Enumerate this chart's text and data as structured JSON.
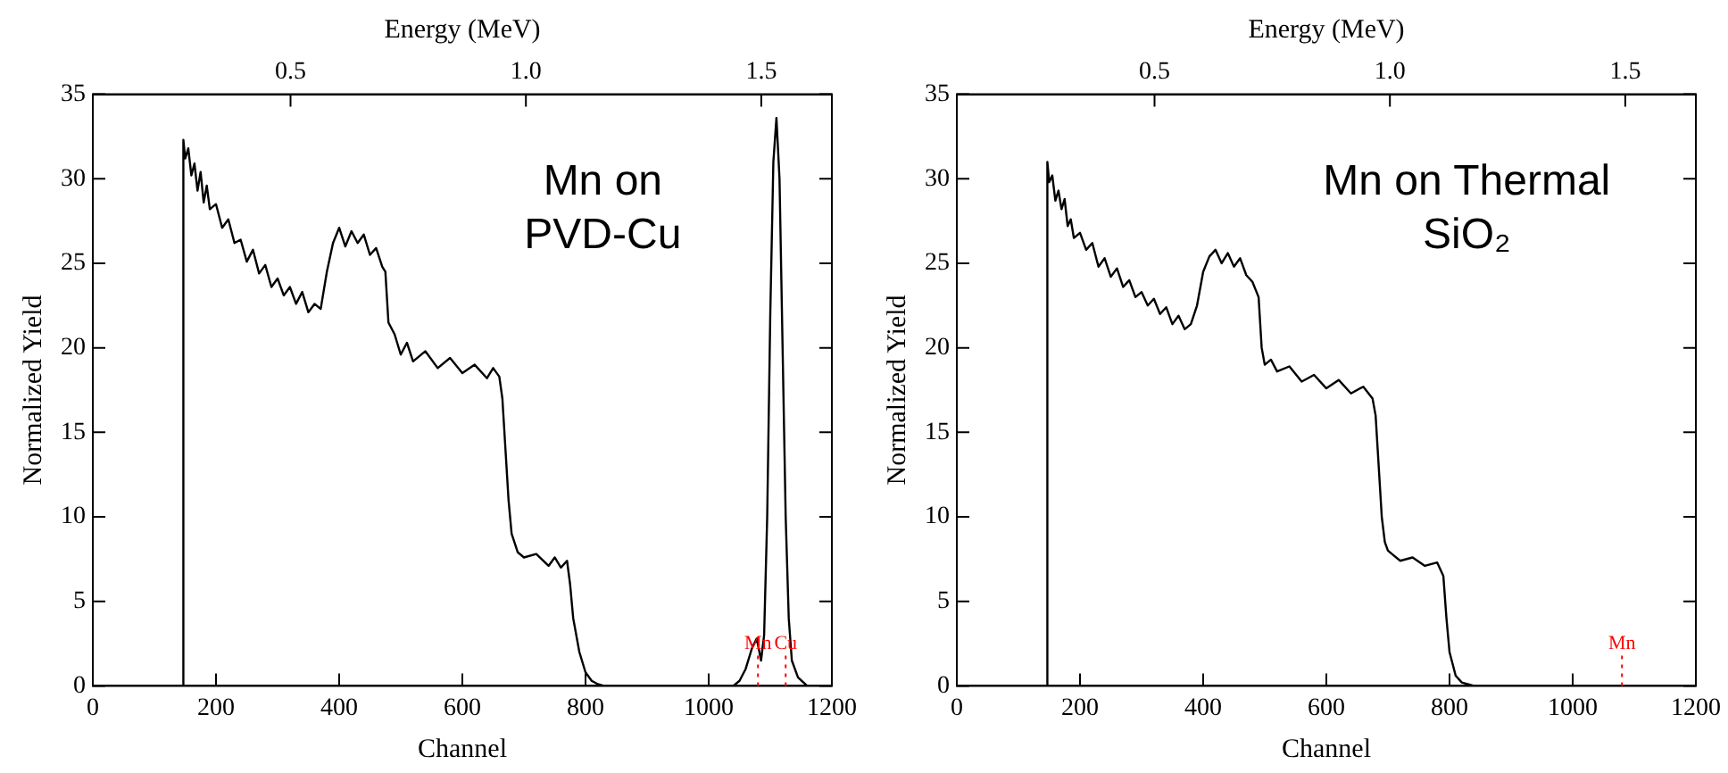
{
  "chart_data": [
    {
      "type": "line",
      "xlabel": "Channel",
      "ylabel": "Normalized Yield",
      "x2label": "Energy (MeV)",
      "xlim": [
        0,
        1200
      ],
      "xticks": [
        0,
        200,
        400,
        600,
        800,
        1000,
        1200
      ],
      "ylim": [
        0,
        35
      ],
      "yticks": [
        0,
        5,
        10,
        15,
        20,
        25,
        30,
        35
      ],
      "x2lim": [
        0.08,
        1.65
      ],
      "x2ticks": [
        {
          "value": 0.5,
          "label": "0.5"
        },
        {
          "value": 1.0,
          "label": "1.0"
        },
        {
          "value": 1.5,
          "label": "1.5"
        }
      ],
      "grid": false,
      "legend": false,
      "marker": "none",
      "line_style": "solid",
      "series": [
        {
          "color": "#000000",
          "x": [
            0,
            145,
            147,
            150,
            155,
            160,
            165,
            170,
            175,
            180,
            185,
            190,
            200,
            210,
            220,
            230,
            240,
            250,
            260,
            270,
            280,
            290,
            300,
            310,
            320,
            330,
            340,
            350,
            360,
            370,
            380,
            390,
            400,
            410,
            420,
            430,
            440,
            450,
            460,
            470,
            475,
            480,
            490,
            500,
            510,
            520,
            540,
            560,
            580,
            600,
            620,
            640,
            650,
            660,
            665,
            670,
            675,
            680,
            690,
            700,
            720,
            740,
            750,
            760,
            770,
            775,
            780,
            790,
            800,
            810,
            820,
            830,
            1040,
            1050,
            1060,
            1070,
            1078,
            1085,
            1090,
            1095,
            1100,
            1105,
            1110,
            1115,
            1120,
            1125,
            1130,
            1135,
            1145,
            1160,
            1200
          ],
          "values": [
            0,
            0,
            32.3,
            31.2,
            31.8,
            30.2,
            30.9,
            29.3,
            30.4,
            28.6,
            29.6,
            28.2,
            28.5,
            27.1,
            27.6,
            26.2,
            26.4,
            25.1,
            25.8,
            24.4,
            24.9,
            23.6,
            24.1,
            23.1,
            23.6,
            22.6,
            23.3,
            22.1,
            22.6,
            22.3,
            24.5,
            26.2,
            27.1,
            26.0,
            26.9,
            26.2,
            26.7,
            25.5,
            25.9,
            24.8,
            24.5,
            21.5,
            20.8,
            19.6,
            20.3,
            19.2,
            19.8,
            18.8,
            19.4,
            18.5,
            19.0,
            18.2,
            18.8,
            18.3,
            17,
            14,
            11,
            9,
            7.9,
            7.6,
            7.8,
            7.1,
            7.6,
            7.0,
            7.4,
            6,
            4,
            2,
            0.8,
            0.3,
            0.1,
            0,
            0,
            0.3,
            1,
            2.2,
            2.8,
            1.5,
            3,
            10,
            22,
            31,
            33.6,
            30,
            20,
            10,
            4,
            1.5,
            0.5,
            0,
            0
          ]
        }
      ],
      "annotations": [
        "Mn on PVD-Cu"
      ],
      "ref_lines": [
        {
          "axis": "x",
          "value": 1080,
          "label": "Mn",
          "color": "#ff0000",
          "line_style": "dotted"
        },
        {
          "axis": "x",
          "value": 1125,
          "label": "Cu",
          "color": "#ff0000",
          "line_style": "dotted"
        }
      ]
    },
    {
      "type": "line",
      "xlabel": "Channel",
      "ylabel": "Normalized Yield",
      "x2label": "Energy (MeV)",
      "xlim": [
        0,
        1200
      ],
      "xticks": [
        0,
        200,
        400,
        600,
        800,
        1000,
        1200
      ],
      "ylim": [
        0,
        35
      ],
      "yticks": [
        0,
        5,
        10,
        15,
        20,
        25,
        30,
        35
      ],
      "x2lim": [
        0.08,
        1.65
      ],
      "x2ticks": [
        {
          "value": 0.5,
          "label": "0.5"
        },
        {
          "value": 1.0,
          "label": "1.0"
        },
        {
          "value": 1.5,
          "label": "1.5"
        }
      ],
      "grid": false,
      "legend": false,
      "marker": "none",
      "line_style": "solid",
      "series": [
        {
          "color": "#000000",
          "x": [
            0,
            145,
            147,
            150,
            155,
            160,
            165,
            170,
            175,
            180,
            185,
            190,
            200,
            210,
            220,
            230,
            240,
            250,
            260,
            270,
            280,
            290,
            300,
            310,
            320,
            330,
            340,
            350,
            360,
            370,
            380,
            390,
            400,
            410,
            420,
            430,
            440,
            450,
            460,
            470,
            480,
            490,
            495,
            500,
            510,
            520,
            540,
            560,
            580,
            600,
            620,
            640,
            660,
            675,
            680,
            685,
            690,
            695,
            700,
            710,
            720,
            740,
            760,
            780,
            790,
            795,
            800,
            810,
            820,
            840,
            1200
          ],
          "values": [
            0,
            0,
            31,
            29.8,
            30.2,
            28.7,
            29.3,
            28.2,
            28.8,
            27.2,
            27.6,
            26.5,
            26.8,
            25.8,
            26.2,
            24.8,
            25.3,
            24.2,
            24.7,
            23.6,
            24.0,
            23.0,
            23.3,
            22.5,
            22.9,
            22.0,
            22.4,
            21.4,
            21.9,
            21.1,
            21.4,
            22.5,
            24.5,
            25.4,
            25.8,
            25.0,
            25.6,
            24.8,
            25.3,
            24.3,
            23.9,
            23,
            20,
            19,
            19.3,
            18.6,
            18.9,
            18.0,
            18.4,
            17.6,
            18.1,
            17.3,
            17.7,
            17,
            16,
            13,
            10,
            8.5,
            8,
            7.7,
            7.4,
            7.6,
            7.1,
            7.3,
            6.5,
            4,
            2,
            0.6,
            0.2,
            0,
            0
          ]
        }
      ],
      "annotations": [
        "Mn on Thermal SiO₂"
      ],
      "ref_lines": [
        {
          "axis": "x",
          "value": 1080,
          "label": "Mn",
          "color": "#ff0000",
          "line_style": "dotted"
        }
      ]
    }
  ]
}
